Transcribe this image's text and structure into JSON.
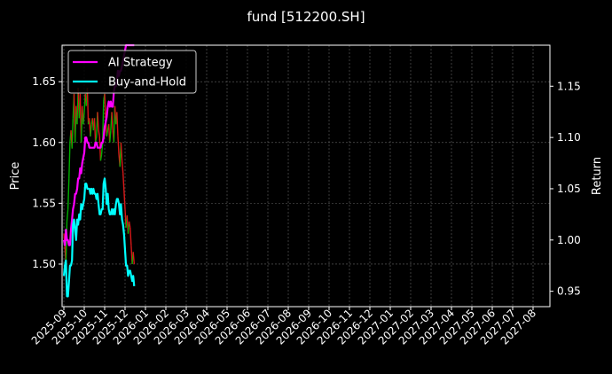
{
  "chart_data": {
    "type": "line",
    "title": "fund [512200.SH]",
    "ylabel_left": "Price",
    "ylabel_right": "Return",
    "background": "#000000",
    "grid": true,
    "legend_position": "top-left",
    "x_ticks": [
      "2025-09",
      "2025-10",
      "2025-11",
      "2025-12",
      "2026-01",
      "2026-02",
      "2026-03",
      "2026-04",
      "2026-05",
      "2026-06",
      "2026-07",
      "2026-08",
      "2026-09",
      "2026-10",
      "2026-11",
      "2026-12",
      "2027-01",
      "2027-02",
      "2027-03",
      "2027-04",
      "2027-05",
      "2027-06",
      "2027-07",
      "2027-08"
    ],
    "x_range_months": [
      0,
      24
    ],
    "left_axis": {
      "ylim": [
        1.465,
        1.68
      ],
      "ticks": [
        1.5,
        1.55,
        1.6,
        1.65
      ],
      "tick_labels": [
        "1.50",
        "1.55",
        "1.60",
        "1.65"
      ]
    },
    "right_axis": {
      "ylim": [
        0.935,
        1.19
      ],
      "ticks": [
        0.95,
        1.0,
        1.05,
        1.1,
        1.15
      ],
      "tick_labels": [
        "0.95",
        "1.00",
        "1.05",
        "1.10",
        "1.15"
      ]
    },
    "series": [
      {
        "name": "AI Strategy",
        "axis": "right",
        "color": "#ff00ff",
        "x": [
          0.0,
          0.05,
          0.1,
          0.15,
          0.2,
          0.25,
          0.3,
          0.35,
          0.4,
          0.45,
          0.5,
          0.55,
          0.6,
          0.65,
          0.7,
          0.75,
          0.8,
          0.85,
          0.9,
          0.95,
          1.0,
          1.05,
          1.1,
          1.15,
          1.2,
          1.25,
          1.3,
          1.35,
          1.4,
          1.45,
          1.5,
          1.55,
          1.6,
          1.65,
          1.7,
          1.75,
          1.8,
          1.85,
          1.9,
          1.95,
          2.0,
          2.05,
          2.1,
          2.15,
          2.2,
          2.25,
          2.3,
          2.35,
          2.4,
          2.45,
          2.5,
          2.55,
          2.6,
          2.65,
          2.7,
          2.75,
          2.8,
          2.85,
          2.9,
          2.95,
          3.0,
          3.05,
          3.1,
          3.15,
          3.2,
          3.25,
          3.3,
          3.35,
          3.4,
          3.45
        ],
        "values": [
          1.0,
          0.995,
          1.01,
          1.0,
          1.0,
          0.995,
          0.995,
          1.01,
          1.02,
          1.03,
          1.035,
          1.045,
          1.045,
          1.05,
          1.06,
          1.06,
          1.07,
          1.065,
          1.075,
          1.08,
          1.085,
          1.1,
          1.1,
          1.095,
          1.095,
          1.09,
          1.09,
          1.09,
          1.09,
          1.09,
          1.09,
          1.095,
          1.095,
          1.09,
          1.09,
          1.09,
          1.09,
          1.095,
          1.095,
          1.1,
          1.11,
          1.115,
          1.12,
          1.13,
          1.135,
          1.13,
          1.135,
          1.13,
          1.13,
          1.145,
          1.15,
          1.15,
          1.155,
          1.165,
          1.16,
          1.165,
          1.165,
          1.17,
          1.175,
          1.18,
          1.185,
          1.19,
          1.19,
          1.19,
          1.19,
          1.19,
          1.19,
          1.19,
          1.19,
          1.19
        ]
      },
      {
        "name": "Buy-and-Hold",
        "axis": "right",
        "color": "#00ffff",
        "x": [
          0.0,
          0.05,
          0.1,
          0.15,
          0.2,
          0.25,
          0.3,
          0.35,
          0.4,
          0.45,
          0.5,
          0.55,
          0.6,
          0.65,
          0.7,
          0.75,
          0.8,
          0.85,
          0.9,
          0.95,
          1.0,
          1.05,
          1.1,
          1.15,
          1.2,
          1.25,
          1.3,
          1.35,
          1.4,
          1.45,
          1.5,
          1.55,
          1.6,
          1.65,
          1.7,
          1.75,
          1.8,
          1.85,
          1.9,
          1.95,
          2.0,
          2.05,
          2.1,
          2.15,
          2.2,
          2.25,
          2.3,
          2.35,
          2.4,
          2.45,
          2.5,
          2.55,
          2.6,
          2.65,
          2.7,
          2.75,
          2.8,
          2.85,
          2.9,
          2.95,
          3.0,
          3.05,
          3.1,
          3.15,
          3.2,
          3.25,
          3.3,
          3.35,
          3.4,
          3.45
        ],
        "values": [
          0.965,
          0.975,
          0.98,
          0.945,
          0.945,
          0.96,
          0.975,
          0.975,
          0.98,
          1.015,
          1.02,
          1.01,
          1.0,
          1.02,
          1.015,
          1.025,
          1.02,
          1.035,
          1.03,
          1.035,
          1.04,
          1.055,
          1.055,
          1.05,
          1.05,
          1.05,
          1.045,
          1.05,
          1.045,
          1.05,
          1.045,
          1.045,
          1.04,
          1.045,
          1.035,
          1.025,
          1.025,
          1.03,
          1.03,
          1.055,
          1.06,
          1.05,
          1.035,
          1.045,
          1.03,
          1.025,
          1.025,
          1.03,
          1.025,
          1.03,
          1.025,
          1.035,
          1.04,
          1.04,
          1.035,
          1.025,
          1.035,
          1.02,
          1.015,
          1.005,
          0.99,
          0.975,
          0.975,
          0.965,
          0.97,
          0.97,
          0.965,
          0.96,
          0.965,
          0.955
        ]
      }
    ],
    "price_series": {
      "axis": "left",
      "colors": {
        "up": "#00b000",
        "down": "#d81818"
      },
      "x": [
        0.0,
        0.05,
        0.1,
        0.15,
        0.2,
        0.25,
        0.3,
        0.35,
        0.4,
        0.45,
        0.5,
        0.55,
        0.6,
        0.65,
        0.7,
        0.75,
        0.8,
        0.85,
        0.9,
        0.95,
        1.0,
        1.05,
        1.1,
        1.15,
        1.2,
        1.25,
        1.3,
        1.35,
        1.4,
        1.45,
        1.5,
        1.55,
        1.6,
        1.65,
        1.7,
        1.75,
        1.8,
        1.85,
        1.9,
        1.95,
        2.0,
        2.05,
        2.1,
        2.15,
        2.2,
        2.25,
        2.3,
        2.35,
        2.4,
        2.45,
        2.5,
        2.55,
        2.6,
        2.65,
        2.7,
        2.75,
        2.8,
        2.85,
        2.9,
        2.95,
        3.0,
        3.05,
        3.1,
        3.15,
        3.2,
        3.25,
        3.3,
        3.35,
        3.4,
        3.45
      ],
      "values": [
        1.525,
        1.515,
        1.5,
        1.535,
        1.545,
        1.57,
        1.6,
        1.61,
        1.595,
        1.62,
        1.64,
        1.6,
        1.63,
        1.615,
        1.645,
        1.62,
        1.64,
        1.6,
        1.63,
        1.615,
        1.625,
        1.64,
        1.63,
        1.645,
        1.615,
        1.62,
        1.605,
        1.615,
        1.62,
        1.61,
        1.62,
        1.6,
        1.605,
        1.625,
        1.61,
        1.605,
        1.585,
        1.59,
        1.6,
        1.635,
        1.64,
        1.62,
        1.605,
        1.61,
        1.615,
        1.6,
        1.61,
        1.625,
        1.61,
        1.6,
        1.63,
        1.615,
        1.625,
        1.605,
        1.59,
        1.58,
        1.6,
        1.585,
        1.575,
        1.56,
        1.545,
        1.53,
        1.54,
        1.525,
        1.535,
        1.53,
        1.515,
        1.5,
        1.51,
        1.5
      ]
    }
  }
}
